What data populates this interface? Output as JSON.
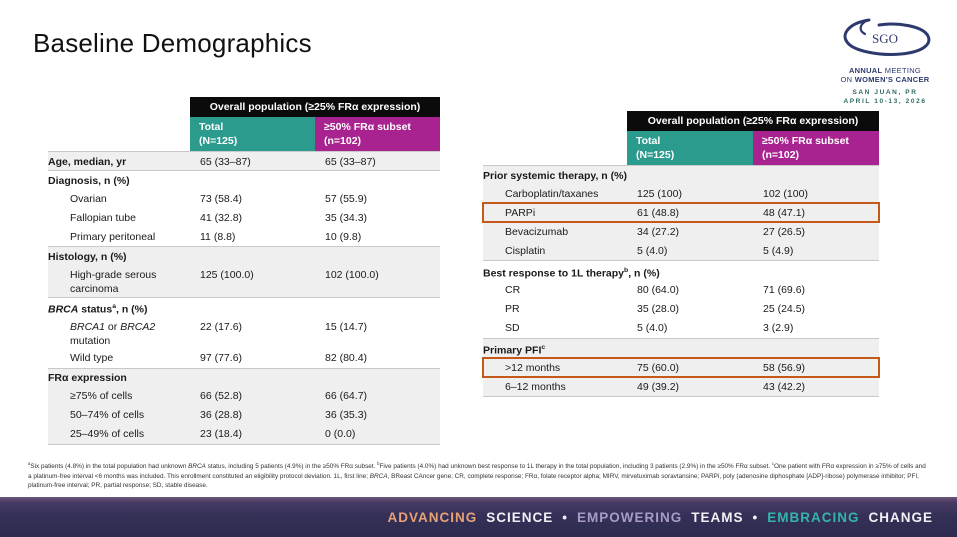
{
  "slide": {
    "title": "Baseline Demographics"
  },
  "logo": {
    "acronym": "SGO",
    "line1_bold": "ANNUAL",
    "line1_rest": " MEETING",
    "line2_pre": "ON ",
    "line2_bold": "WOMEN'S CANCER",
    "line3": "SAN JUAN, PR",
    "line4": "APRIL 10-13, 2026"
  },
  "colors": {
    "teal_header": "#2b9b8e",
    "magenta_header": "#a8238f",
    "black_header": "#0b0b0b",
    "row_shade": "#efefef",
    "highlight_border": "#c5591a",
    "footer_orange": "#e9a178",
    "footer_lavender": "#a89cc8",
    "footer_teal": "#35b5a9",
    "footer_white": "#f2f0f5",
    "logo_navy": "#2e3a6e",
    "logo_teal": "#2d6a62"
  },
  "tables": [
    {
      "header": "Overall population (≥25% FRα expression)",
      "col1_line1": "Total",
      "col1_line2": "(N=125)",
      "col2_line1": "≥50% FRα subset",
      "col2_line2": "(n=102)",
      "rows": [
        {
          "label": "Age, median, yr",
          "bold": true,
          "shade": true,
          "bt": true,
          "values": [
            "65 (33–87)",
            "65 (33–87)"
          ]
        },
        {
          "label": "Diagnosis, n (%)",
          "bold": true,
          "bt": true,
          "values": [
            "",
            ""
          ]
        },
        {
          "label": "Ovarian",
          "indent": true,
          "values": [
            "73 (58.4)",
            "57 (55.9)"
          ]
        },
        {
          "label": "Fallopian tube",
          "indent": true,
          "values": [
            "41 (32.8)",
            "35 (34.3)"
          ]
        },
        {
          "label": "Primary peritoneal",
          "indent": true,
          "values": [
            "11 (8.8)",
            "10 (9.8)"
          ]
        },
        {
          "label": "Histology, n (%)",
          "bold": true,
          "shade": true,
          "bt": true,
          "values": [
            "",
            ""
          ]
        },
        {
          "label": "High-grade serous carcinoma",
          "indent": true,
          "shade": true,
          "tall": true,
          "values": [
            "125 (100.0)",
            "102 (100.0)"
          ]
        },
        {
          "label": "*BRCA* status^a^, n (%)",
          "bold": true,
          "bt": true,
          "values": [
            "",
            ""
          ]
        },
        {
          "label": "*BRCA1* or *BRCA2* mutation",
          "indent": true,
          "tall": true,
          "values": [
            "22 (17.6)",
            "15 (14.7)"
          ]
        },
        {
          "label": "Wild type",
          "indent": true,
          "values": [
            "97 (77.6)",
            "82 (80.4)"
          ]
        },
        {
          "label": "FRα expression",
          "bold": true,
          "shade": true,
          "bt": true,
          "values": [
            "",
            ""
          ]
        },
        {
          "label": "≥75% of cells",
          "indent": true,
          "shade": true,
          "values": [
            "66 (52.8)",
            "66 (64.7)"
          ]
        },
        {
          "label": "50–74% of cells",
          "indent": true,
          "shade": true,
          "values": [
            "36 (28.8)",
            "36 (35.3)"
          ]
        },
        {
          "label": "25–49% of cells",
          "indent": true,
          "shade": true,
          "values": [
            "23 (18.4)",
            "0 (0.0)"
          ]
        }
      ]
    },
    {
      "header": "Overall population (≥25% FRα expression)",
      "col1_line1": "Total",
      "col1_line2": "(N=125)",
      "col2_line1": "≥50% FRα subset",
      "col2_line2": "(n=102)",
      "rows": [
        {
          "label": "Prior systemic therapy, n (%)",
          "bold": true,
          "shade": true,
          "bt": true,
          "values": [
            "",
            ""
          ]
        },
        {
          "label": "Carboplatin/taxanes",
          "indent": true,
          "shade": true,
          "values": [
            "125 (100)",
            "102 (100)"
          ]
        },
        {
          "label": "PARPi",
          "indent": true,
          "shade": true,
          "highlight": true,
          "values": [
            "61 (48.8)",
            "48 (47.1)"
          ]
        },
        {
          "label": "Bevacizumab",
          "indent": true,
          "shade": true,
          "values": [
            "34 (27.2)",
            "27 (26.5)"
          ]
        },
        {
          "label": "Cisplatin",
          "indent": true,
          "shade": true,
          "values": [
            "5 (4.0)",
            "5 (4.9)"
          ]
        },
        {
          "label": "Best response to 1L therapy^b^, n (%)",
          "bold": true,
          "bt": true,
          "values": [
            "",
            ""
          ]
        },
        {
          "label": "CR",
          "indent": true,
          "values": [
            "80 (64.0)",
            "71 (69.6)"
          ]
        },
        {
          "label": "PR",
          "indent": true,
          "values": [
            "35 (28.0)",
            "25 (24.5)"
          ]
        },
        {
          "label": "SD",
          "indent": true,
          "values": [
            "5 (4.0)",
            "3 (2.9)"
          ]
        },
        {
          "label": "Primary PFI^c^",
          "bold": true,
          "shade": true,
          "bt": true,
          "values": [
            "",
            ""
          ]
        },
        {
          "label": ">12 months",
          "indent": true,
          "shade": true,
          "highlight": true,
          "values": [
            "75 (60.0)",
            "58 (56.9)"
          ]
        },
        {
          "label": "6–12 months",
          "indent": true,
          "shade": true,
          "values": [
            "49 (39.2)",
            "43 (42.2)"
          ]
        }
      ]
    }
  ],
  "footnote": "^a^Six patients (4.8%) in the total population had unknown *BRCA* status, including 5 patients (4.9%) in the ≥50% FRα subset. ^b^Five patients (4.0%) had unknown best response to 1L therapy in the total population, including 3 patients (2.9%) in the ≥50% FRα subset. ^c^One patient with FRα expression in ≥75% of cells and a platinum-free interval <6 months was included. This enrollment constituted an eligibility protocol deviation. 1L, first line; *BRCA*, BReast CAncer gene; CR, complete response; FRα, folate receptor alpha; MIRV, mirvetuximab soravtansine; PARPi, poly (adenosine diphosphate [ADP]-ribose) polymerase inhibitor; PFI, platinum-free interval; PR, partial response; SD, stable disease.",
  "footer": {
    "segments": [
      {
        "text": "ADVANCING",
        "color": "#e9a178"
      },
      {
        "text": "SCIENCE",
        "color": "#f2f0f5"
      },
      {
        "text": "•",
        "color": "#f2f0f5"
      },
      {
        "text": "EMPOWERING",
        "color": "#a89cc8"
      },
      {
        "text": "TEAMS",
        "color": "#f2f0f5"
      },
      {
        "text": "•",
        "color": "#f2f0f5"
      },
      {
        "text": "EMBRACING",
        "color": "#35b5a9"
      },
      {
        "text": "CHANGE",
        "color": "#f2f0f5"
      }
    ]
  }
}
